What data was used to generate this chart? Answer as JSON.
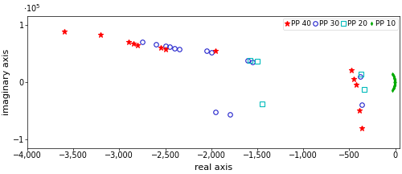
{
  "title": "",
  "xlabel": "real axis",
  "ylabel": "imaginary axis",
  "xlim": [
    -4000,
    50
  ],
  "ylim": [
    -115000.0,
    115000.0
  ],
  "xticks": [
    -4000,
    -3500,
    -3000,
    -2500,
    -2000,
    -1500,
    -1000,
    -500,
    0
  ],
  "yticks": [
    -100000.0,
    0,
    100000.0
  ],
  "pp40": {
    "real": [
      -3600,
      -3200,
      -2900,
      -2850,
      -2800,
      -2550,
      -2500,
      -1950,
      -480,
      -450,
      -420,
      -390,
      -360
    ],
    "imag": [
      88000,
      82000,
      70000,
      67000,
      64000,
      60000,
      57000,
      55000,
      20000,
      5000,
      -5000,
      -50000,
      -80000
    ],
    "color": "#ff0000",
    "marker": "*",
    "size": 5,
    "label": "PP 40"
  },
  "pp30": {
    "real": [
      -2750,
      -2600,
      -2500,
      -2450,
      -2400,
      -2350,
      -2050,
      -2000,
      -1950,
      -1800,
      -1600,
      -1550,
      -380,
      -360
    ],
    "imag": [
      70000,
      66000,
      63000,
      61000,
      59000,
      57000,
      55000,
      52000,
      -53000,
      -56000,
      38000,
      35000,
      10000,
      -40000
    ],
    "color": "#2222cc",
    "marker": "o",
    "size": 4,
    "label": "PP 30"
  },
  "pp20": {
    "real": [
      -1580,
      -1500,
      -1450,
      -370,
      -340
    ],
    "imag": [
      38000,
      36000,
      -38000,
      13000,
      -13000
    ],
    "color": "#00bbbb",
    "marker": "s",
    "size": 4,
    "label": "PP 20"
  },
  "pp10": {
    "real": [
      -30,
      -22,
      -16,
      -12,
      -9,
      -7,
      -5,
      -4,
      -3,
      -2,
      -1.5,
      -1,
      -0.8,
      -0.5,
      -0.3,
      -0.2,
      -0.1,
      -30,
      -22,
      -16,
      -12,
      -9,
      -7,
      -5,
      -4,
      -3,
      -2,
      -1.5,
      -1,
      -0.8,
      -0.5,
      -0.3,
      -0.2,
      -0.1
    ],
    "imag": [
      14000,
      12000,
      10000,
      8500,
      7000,
      5500,
      4000,
      3000,
      2000,
      1200,
      700,
      350,
      200,
      100,
      50,
      20,
      5,
      -14000,
      -12000,
      -10000,
      -8500,
      -7000,
      -5500,
      -4000,
      -3000,
      -2000,
      -1200,
      -700,
      -350,
      -200,
      -100,
      -50,
      -20,
      -5
    ],
    "color": "#00aa00",
    "marker": "d",
    "size": 2.5,
    "label": "PP 10"
  },
  "background_color": "#ffffff"
}
